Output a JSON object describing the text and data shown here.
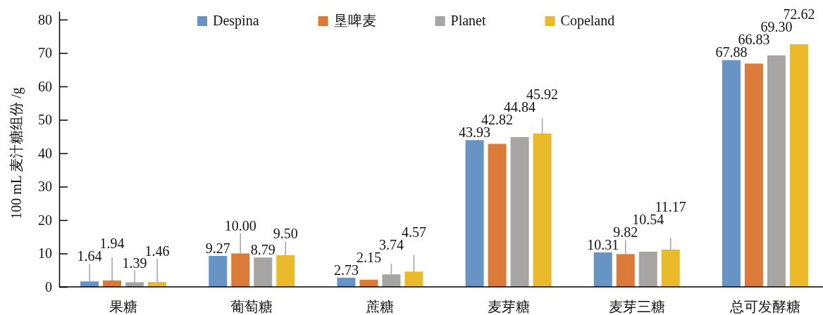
{
  "chart_data": {
    "type": "bar",
    "ylabel": "100 mL 麦汁糖组份 /g",
    "categories": [
      "果糖",
      "葡萄糖",
      "蔗糖",
      "麦芽糖",
      "麦芽三糖",
      "总可发酵糖"
    ],
    "series": [
      {
        "name": "Despina",
        "color": "#6893c5",
        "values": [
          1.64,
          9.27,
          2.73,
          43.93,
          10.31,
          67.88
        ],
        "value_labels": [
          "1.64",
          "9.27",
          "2.73",
          "43.93",
          "10.31",
          "67.88"
        ],
        "errors": [
          [
            1.64,
            6.9
          ],
          null,
          null,
          null,
          null,
          null
        ]
      },
      {
        "name": "垦啤麦",
        "color": "#dc7a39",
        "values": [
          1.94,
          10.0,
          2.15,
          42.82,
          9.82,
          66.83
        ],
        "value_labels": [
          "1.94",
          "10.00",
          "2.15",
          "42.82",
          "9.82",
          "66.83"
        ],
        "errors": [
          [
            1.94,
            8.8
          ],
          [
            10.0,
            16.0
          ],
          null,
          null,
          [
            9.82,
            14.0
          ],
          null
        ]
      },
      {
        "name": "Planet",
        "color": "#a6a5a4",
        "values": [
          1.39,
          8.79,
          3.74,
          44.84,
          10.54,
          69.3
        ],
        "value_labels": [
          "1.39",
          "8.79",
          "3.74",
          "44.84",
          "10.54",
          "69.30"
        ],
        "errors": [
          [
            1.39,
            4.9
          ],
          null,
          [
            3.74,
            6.9
          ],
          null,
          null,
          null
        ]
      },
      {
        "name": "Copeland",
        "color": "#ebba2b",
        "values": [
          1.46,
          9.5,
          4.57,
          45.92,
          11.17,
          72.62
        ],
        "value_labels": [
          "1.46",
          "9.50",
          "4.57",
          "45.92",
          "11.17",
          "72.62"
        ],
        "errors": [
          [
            1.46,
            8.4
          ],
          [
            9.5,
            13.6
          ],
          [
            4.57,
            9.6
          ],
          [
            45.92,
            50.5
          ],
          [
            11.17,
            14.7
          ],
          null
        ]
      }
    ],
    "ylim": [
      0,
      82.5
    ],
    "yticks": [
      0,
      10,
      20,
      30,
      40,
      50,
      60,
      70,
      80
    ],
    "legend": "top"
  }
}
